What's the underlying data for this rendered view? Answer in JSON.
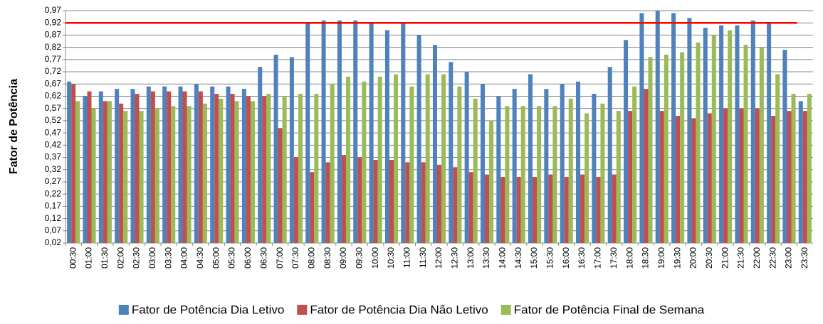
{
  "chart_data": {
    "type": "bar",
    "y_label": "Fator de Potência",
    "categories": [
      "00:30",
      "01:00",
      "01:30",
      "02:00",
      "02:30",
      "03:00",
      "03:30",
      "04:00",
      "04:30",
      "05:00",
      "05:30",
      "06:00",
      "06:30",
      "07:00",
      "07:30",
      "08:00",
      "08:30",
      "09:00",
      "09:30",
      "10:00",
      "10:30",
      "11:00",
      "11:30",
      "12:00",
      "12:30",
      "13:00",
      "13:30",
      "14:00",
      "14:30",
      "15:00",
      "15:30",
      "16:00",
      "16:30",
      "17:00",
      "17:30",
      "18:00",
      "18:30",
      "19:00",
      "19:30",
      "20:00",
      "20:30",
      "21:00",
      "21:30",
      "22:00",
      "22:30",
      "23:00",
      "23:30"
    ],
    "series": [
      {
        "name": "Fator de Potência Dia Letivo",
        "color": "#4f81bd",
        "values": [
          0.68,
          0.62,
          0.64,
          0.65,
          0.65,
          0.66,
          0.66,
          0.66,
          0.67,
          0.66,
          0.66,
          0.65,
          0.74,
          0.79,
          0.78,
          0.92,
          0.93,
          0.93,
          0.93,
          0.92,
          0.89,
          0.92,
          0.87,
          0.83,
          0.76,
          0.72,
          0.67,
          0.62,
          0.65,
          0.71,
          0.65,
          0.67,
          0.68,
          0.63,
          0.74,
          0.85,
          0.96,
          0.97,
          0.96,
          0.94,
          0.9,
          0.91,
          0.91,
          0.93,
          0.92,
          0.81,
          0.6
        ]
      },
      {
        "name": "Fator de Potência Dia Não Letivo",
        "color": "#c0504d",
        "values": [
          0.67,
          0.64,
          0.6,
          0.59,
          0.63,
          0.64,
          0.64,
          0.64,
          0.64,
          0.63,
          0.63,
          0.62,
          0.62,
          0.49,
          0.37,
          0.31,
          0.35,
          0.38,
          0.37,
          0.36,
          0.36,
          0.35,
          0.35,
          0.34,
          0.33,
          0.31,
          0.3,
          0.29,
          0.29,
          0.29,
          0.3,
          0.29,
          0.3,
          0.29,
          0.3,
          0.56,
          0.65,
          0.56,
          0.54,
          0.53,
          0.55,
          0.57,
          0.57,
          0.57,
          0.54,
          0.56,
          0.56
        ]
      },
      {
        "name": "Fator de Potência Final de Semana",
        "color": "#9bbb59",
        "values": [
          0.6,
          0.57,
          0.6,
          0.56,
          0.56,
          0.57,
          0.58,
          0.58,
          0.59,
          0.61,
          0.6,
          0.6,
          0.63,
          0.62,
          0.63,
          0.63,
          0.67,
          0.7,
          0.68,
          0.7,
          0.71,
          0.66,
          0.71,
          0.71,
          0.66,
          0.61,
          0.52,
          0.58,
          0.58,
          0.58,
          0.58,
          0.61,
          0.55,
          0.59,
          0.56,
          0.66,
          0.78,
          0.79,
          0.8,
          0.84,
          0.87,
          0.89,
          0.83,
          0.82,
          0.71,
          0.63,
          0.63
        ]
      }
    ],
    "reference_line": {
      "value": 0.92,
      "color": "#ff0000"
    },
    "ylim": [
      0.02,
      0.97
    ],
    "yticks": [
      {
        "value": 0.02,
        "label": "0,02"
      },
      {
        "value": 0.07,
        "label": "0,07"
      },
      {
        "value": 0.12,
        "label": "0,12"
      },
      {
        "value": 0.17,
        "label": "0,17"
      },
      {
        "value": 0.22,
        "label": "0,22"
      },
      {
        "value": 0.27,
        "label": "0,27"
      },
      {
        "value": 0.32,
        "label": "0,32"
      },
      {
        "value": 0.37,
        "label": "0,37"
      },
      {
        "value": 0.42,
        "label": "0,42"
      },
      {
        "value": 0.47,
        "label": "0,47"
      },
      {
        "value": 0.52,
        "label": "0,52"
      },
      {
        "value": 0.57,
        "label": "0,57"
      },
      {
        "value": 0.62,
        "label": "0,62"
      },
      {
        "value": 0.67,
        "label": "0,67"
      },
      {
        "value": 0.72,
        "label": "0,72"
      },
      {
        "value": 0.77,
        "label": "0,77"
      },
      {
        "value": 0.82,
        "label": "0,82"
      },
      {
        "value": 0.87,
        "label": "0,87"
      },
      {
        "value": 0.92,
        "label": "0,92"
      },
      {
        "value": 0.97,
        "label": "0,97"
      }
    ],
    "grid": true,
    "legend_position": "bottom"
  }
}
